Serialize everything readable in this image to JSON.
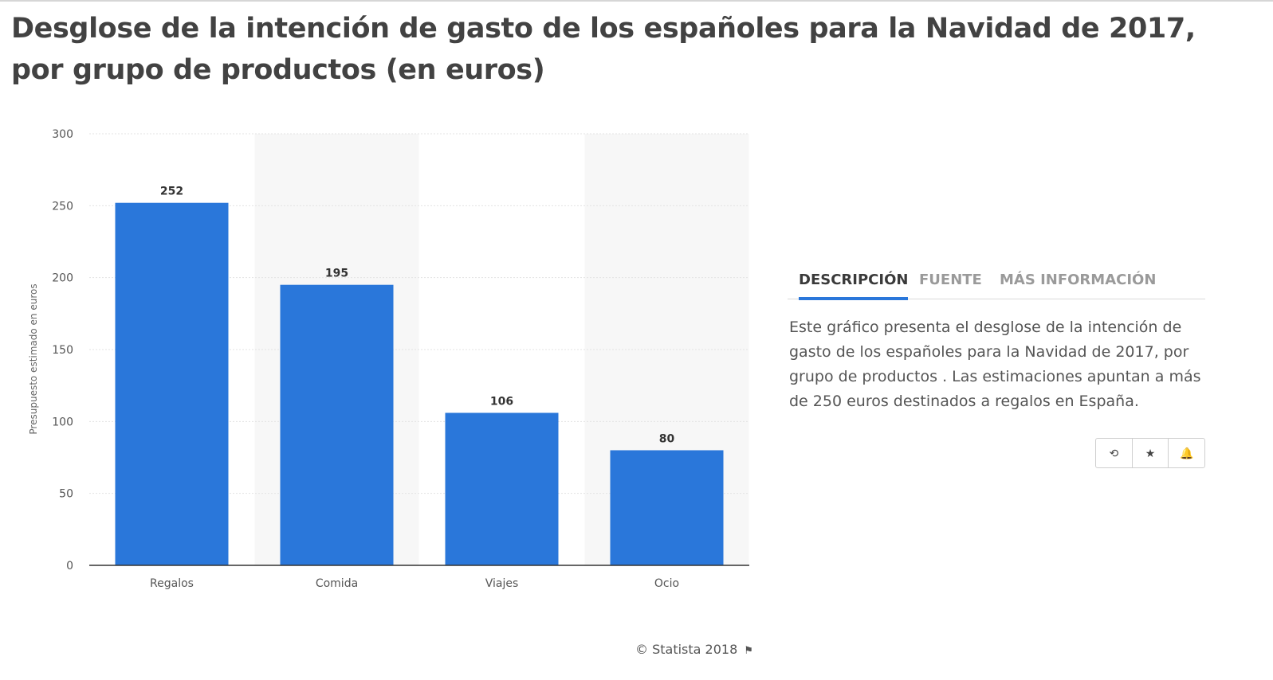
{
  "title": "Desglose de la intención de gasto de los españoles para la Navidad de 2017, por grupo de productos (en euros)",
  "chart_data": {
    "type": "bar",
    "categories": [
      "Regalos",
      "Comida",
      "Viajes",
      "Ocio"
    ],
    "values": [
      252,
      195,
      106,
      80
    ],
    "ylabel": "Presupuesto estimado en euros",
    "ylim": [
      0,
      300
    ],
    "yticks": [
      0,
      50,
      100,
      150,
      200,
      250,
      300
    ],
    "grid": true,
    "bar_color": "#2a77da",
    "alternate_band_color": "#f7f7f7"
  },
  "tabs": [
    {
      "label": "DESCRIPCIÓN",
      "active": true
    },
    {
      "label": "FUENTE",
      "active": false
    },
    {
      "label": "MÁS INFORMACIÓN",
      "active": false
    }
  ],
  "description": "Este gráfico presenta el desglose de la intención de gasto de los españoles para la Navidad de 2017, por grupo de productos . Las estimaciones apuntan a más de 250 euros destinados a regalos en España.",
  "actions": [
    {
      "icon": "history-icon",
      "glyph": "⟲"
    },
    {
      "icon": "star-icon",
      "glyph": "★"
    },
    {
      "icon": "bell-icon",
      "glyph": "🔔"
    }
  ],
  "footer": {
    "text": "© Statista 2018",
    "icon": "flag-icon",
    "glyph": "⚑"
  },
  "colors": {
    "accent": "#2a77da",
    "title": "#424242",
    "text": "#555555"
  }
}
